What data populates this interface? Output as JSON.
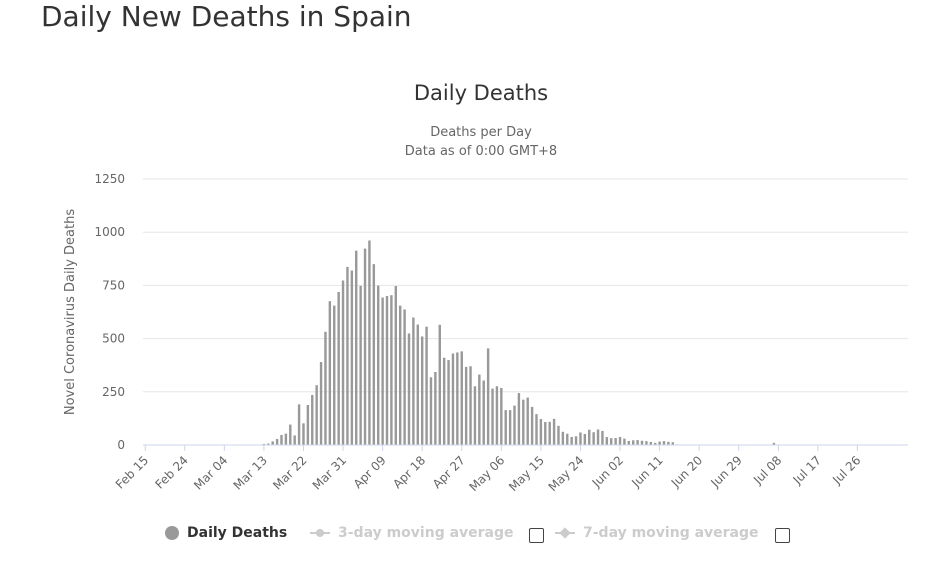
{
  "page": {
    "title": "Daily New Deaths in Spain"
  },
  "colors": {
    "bar": "#999999",
    "grid": "#e6e6e6",
    "axis": "#ccd6eb",
    "legend_inactive": "#cccccc"
  },
  "legend": {
    "items": [
      {
        "label": "Daily Deaths",
        "active": true,
        "symbol": "circle"
      },
      {
        "label": "3-day moving average",
        "active": false,
        "symbol": "line-circle"
      },
      {
        "label": "7-day moving average",
        "active": false,
        "symbol": "line-diamond"
      }
    ]
  },
  "chart_data": {
    "type": "bar",
    "title": "Daily Deaths",
    "subtitle": [
      "Deaths per Day",
      "Data as of 0:00 GMT+8"
    ],
    "ylabel": "Novel Coronavirus Daily Deaths",
    "xlabel": "",
    "ylim": [
      0,
      1250
    ],
    "yticks": [
      0,
      250,
      500,
      750,
      1000,
      1250
    ],
    "grid": true,
    "legend_position": "bottom",
    "x_start": "Feb 15",
    "xticks": [
      "Feb 15",
      "Feb 24",
      "Mar 04",
      "Mar 13",
      "Mar 22",
      "Mar 31",
      "Apr 09",
      "Apr 18",
      "Apr 27",
      "May 06",
      "May 15",
      "May 24",
      "Jun 02",
      "Jun 11",
      "Jun 20",
      "Jun 29",
      "Jul 08",
      "Jul 17",
      "Jul 26"
    ],
    "series": [
      {
        "name": "Daily Deaths",
        "values": [
          0,
          0,
          0,
          0,
          0,
          0,
          0,
          0,
          0,
          0,
          0,
          0,
          0,
          0,
          0,
          0,
          0,
          0,
          0,
          0,
          0,
          0,
          0,
          0,
          1,
          0,
          0,
          5,
          7,
          17,
          28,
          47,
          53,
          96,
          45,
          191,
          102,
          188,
          235,
          281,
          390,
          532,
          676,
          655,
          719,
          773,
          837,
          820,
          913,
          748,
          923,
          961,
          850,
          749,
          693,
          700,
          704,
          747,
          655,
          637,
          524,
          599,
          566,
          510,
          556,
          318,
          343,
          565,
          410,
          399,
          430,
          435,
          440,
          367,
          370,
          276,
          331,
          303,
          454,
          265,
          276,
          268,
          164,
          164,
          185,
          244,
          213,
          223,
          179,
          145,
          122,
          108,
          109,
          123,
          90,
          62,
          53,
          38,
          41,
          59,
          52,
          72,
          60,
          73,
          66,
          37,
          32,
          33,
          38,
          30,
          19,
          22,
          23,
          20,
          18,
          14,
          10,
          16,
          18,
          15,
          13,
          3,
          0,
          0,
          0,
          0,
          0,
          0,
          0,
          0,
          0,
          0,
          0,
          0,
          0,
          0,
          0,
          0,
          0,
          0,
          2,
          0,
          0,
          10,
          0,
          0,
          0,
          0,
          0,
          0,
          0,
          0,
          0,
          0,
          0,
          0,
          0,
          0,
          0,
          0,
          0,
          0,
          0,
          0,
          0,
          0,
          0,
          0,
          0,
          0,
          0,
          0,
          0,
          0
        ]
      }
    ]
  }
}
